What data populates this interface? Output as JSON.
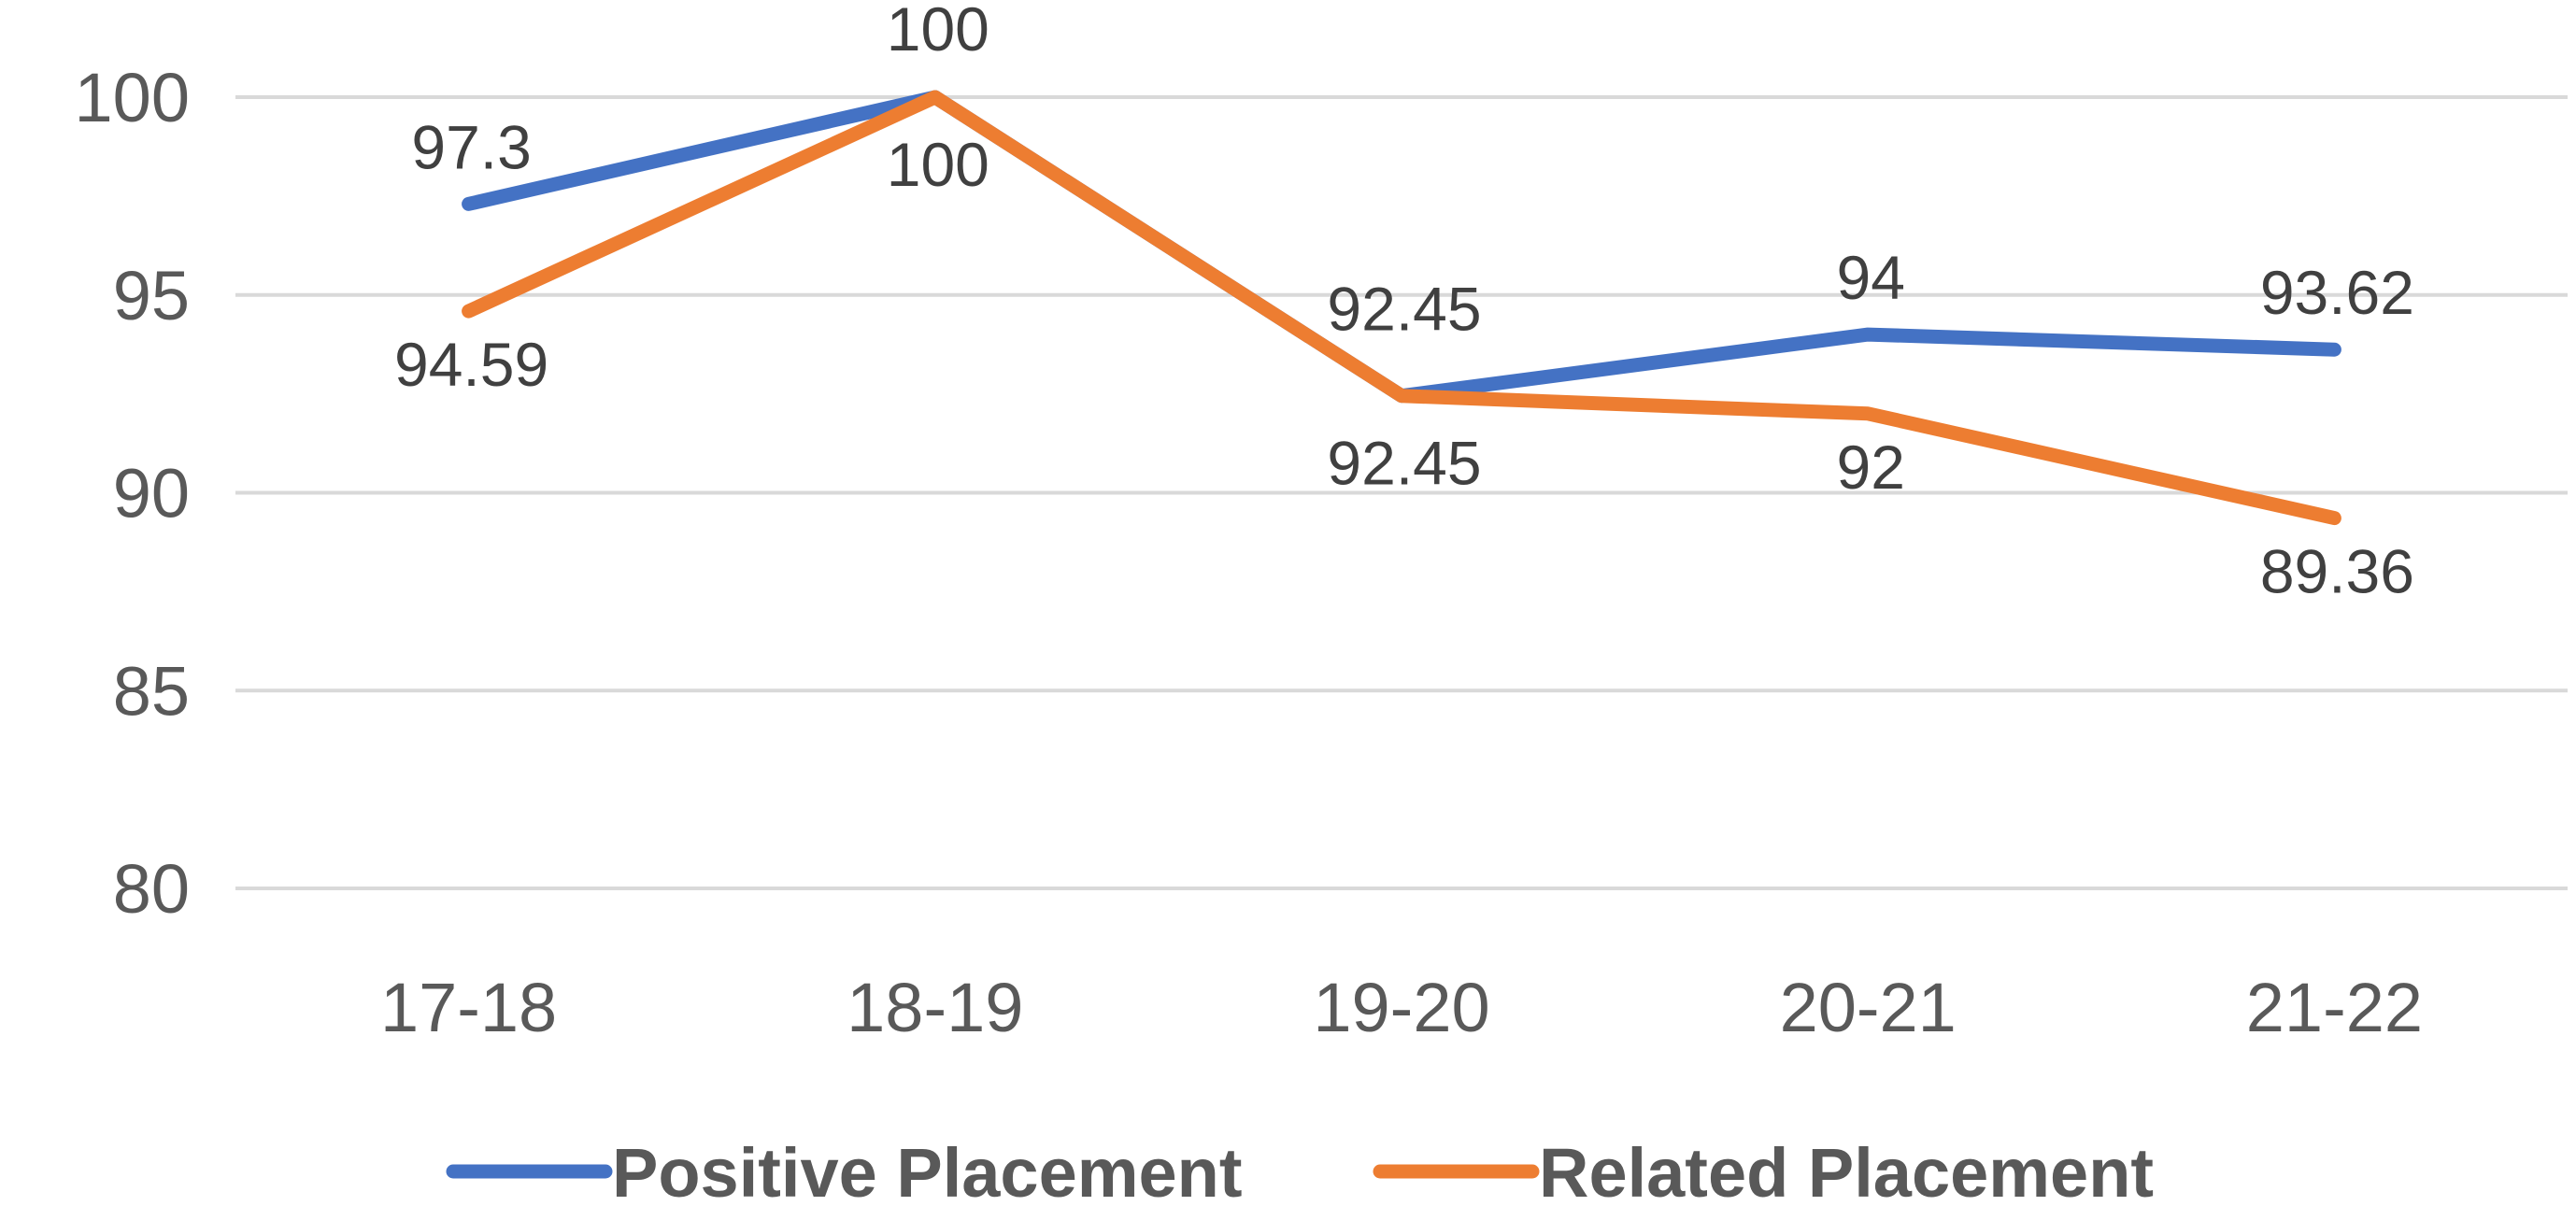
{
  "chart_data": {
    "type": "line",
    "title": "",
    "xlabel": "",
    "ylabel": "",
    "categories": [
      "17-18",
      "18-19",
      "19-20",
      "20-21",
      "21-22"
    ],
    "ylim": [
      80,
      100
    ],
    "yticks": [
      80,
      85,
      90,
      95,
      100
    ],
    "grid": true,
    "legend_position": "bottom",
    "series": [
      {
        "name": "Positive Placement",
        "color": "#4472c4",
        "values": [
          97.3,
          100,
          92.45,
          94,
          93.62
        ],
        "labels": [
          "97.3",
          "100",
          "92.45",
          "94",
          "93.62"
        ]
      },
      {
        "name": "Related Placement",
        "color": "#ed7d31",
        "values": [
          94.59,
          100,
          92.45,
          92,
          89.36
        ],
        "labels": [
          "94.59",
          "100",
          "92.45",
          "92",
          "89.36"
        ]
      }
    ]
  }
}
